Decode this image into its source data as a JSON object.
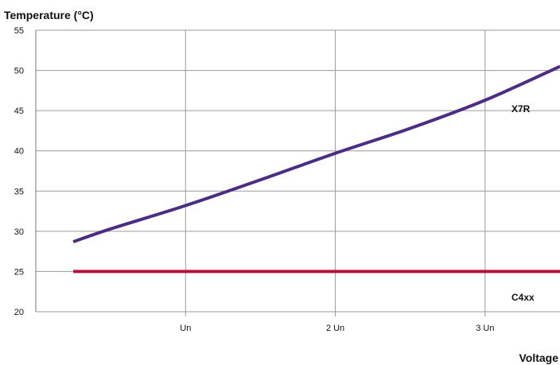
{
  "chart_data": {
    "type": "line",
    "title": "",
    "ylabel": "Temperature (°C)",
    "xlabel": "Voltage",
    "x_ticks": [
      {
        "value": 1,
        "label": "Un"
      },
      {
        "value": 2,
        "label": "2 Un"
      },
      {
        "value": 3,
        "label": "3 Un"
      }
    ],
    "y_ticks": [
      20,
      25,
      30,
      35,
      40,
      45,
      50,
      55
    ],
    "xlim": [
      0,
      3.5
    ],
    "ylim": [
      20,
      55
    ],
    "grid": true,
    "series": [
      {
        "name": "X7R",
        "color": "#4b2d84",
        "points": [
          [
            0.25,
            28.7
          ],
          [
            0.5,
            30.3
          ],
          [
            1.0,
            33.2
          ],
          [
            1.5,
            36.4
          ],
          [
            2.0,
            39.7
          ],
          [
            2.5,
            42.8
          ],
          [
            3.0,
            46.3
          ],
          [
            3.5,
            50.5
          ]
        ]
      },
      {
        "name": "C4xx",
        "color": "#b3123f",
        "points": [
          [
            0.25,
            25
          ],
          [
            3.5,
            25
          ]
        ]
      }
    ]
  }
}
